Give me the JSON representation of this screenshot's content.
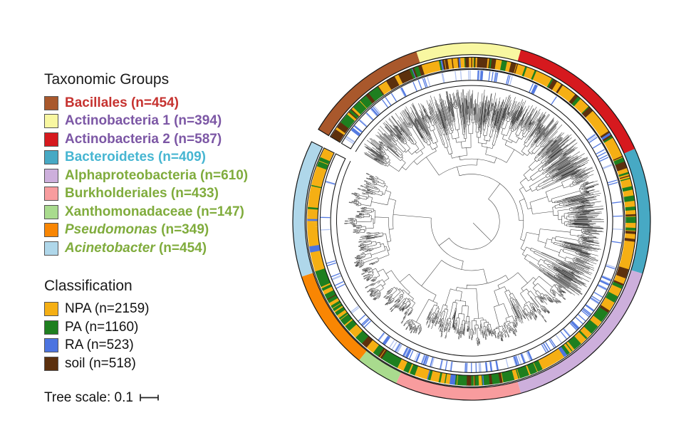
{
  "legend": {
    "taxonomic_header": "Taxonomic Groups",
    "classification_header": "Classification",
    "tree_scale_label": "Tree scale: 0.1"
  },
  "chart_data": {
    "type": "circular-phylogenetic-tree",
    "title": "",
    "tree_scale": 0.1,
    "gap_deg": [
      296.5,
      301
    ],
    "rings_order_outer_to_inner": [
      "taxonomic-group-ring",
      "classification-barcode-ring",
      "ra-barcode-ring",
      "phylogram"
    ],
    "groups": [
      {
        "name": "Bacillales",
        "n": 454,
        "color": "#A9582C",
        "label_color": "#C63330",
        "italic": false,
        "arc_start_deg": 301,
        "arc_end_deg": 342,
        "classification_mix": {
          "NPA": 0.3,
          "PA": 0.22,
          "RA": 0.05,
          "soil": 0.43
        },
        "ra_ring_density": 0.28
      },
      {
        "name": "Actinobacteria 1",
        "n": 394,
        "color": "#F8F7A1",
        "label_color": "#7C57A5",
        "italic": false,
        "arc_start_deg": 342,
        "arc_end_deg": 376,
        "classification_mix": {
          "NPA": 0.45,
          "PA": 0.15,
          "RA": 0.07,
          "soil": 0.33
        },
        "ra_ring_density": 0.22
      },
      {
        "name": "Actinobacteria 2",
        "n": 587,
        "color": "#D6191E",
        "label_color": "#7C57A5",
        "italic": false,
        "arc_start_deg": 376,
        "arc_end_deg": 426,
        "classification_mix": {
          "NPA": 0.72,
          "PA": 0.1,
          "RA": 0.04,
          "soil": 0.14
        },
        "ra_ring_density": 0.1
      },
      {
        "name": "Bacteroidetes",
        "n": 409,
        "color": "#47A9C4",
        "label_color": "#47B6D2",
        "italic": false,
        "arc_start_deg": 426,
        "arc_end_deg": 467,
        "classification_mix": {
          "NPA": 0.62,
          "PA": 0.2,
          "RA": 0.04,
          "soil": 0.14
        },
        "ra_ring_density": 0.1
      },
      {
        "name": "Alphaproteobacteria",
        "n": 610,
        "color": "#CDAFDC",
        "label_color": "#80AC3D",
        "italic": false,
        "arc_start_deg": 467,
        "arc_end_deg": 524,
        "classification_mix": {
          "NPA": 0.38,
          "PA": 0.52,
          "RA": 0.04,
          "soil": 0.06
        },
        "ra_ring_density": 0.28
      },
      {
        "name": "Burkholderiales",
        "n": 433,
        "color": "#F89C9E",
        "label_color": "#80AC3D",
        "italic": false,
        "arc_start_deg": 524,
        "arc_end_deg": 565,
        "classification_mix": {
          "NPA": 0.35,
          "PA": 0.58,
          "RA": 0.03,
          "soil": 0.04
        },
        "ra_ring_density": 0.25
      },
      {
        "name": "Xanthomonadaceae",
        "n": 147,
        "color": "#A9DB8E",
        "label_color": "#80AC3D",
        "italic": false,
        "arc_start_deg": 565,
        "arc_end_deg": 579,
        "classification_mix": {
          "NPA": 0.45,
          "PA": 0.5,
          "RA": 0.02,
          "soil": 0.03
        },
        "ra_ring_density": 0.35
      },
      {
        "name": "Pseudomonas",
        "n": 349,
        "color": "#F98603",
        "label_color": "#80AC3D",
        "italic": true,
        "arc_start_deg": 579,
        "arc_end_deg": 612,
        "classification_mix": {
          "NPA": 0.38,
          "PA": 0.55,
          "RA": 0.03,
          "soil": 0.04
        },
        "ra_ring_density": 0.12
      },
      {
        "name": "Acinetobacter",
        "n": 454,
        "color": "#AFD7EA",
        "label_color": "#80AC3D",
        "italic": true,
        "arc_start_deg": 612,
        "arc_end_deg": 656.5,
        "classification_mix": {
          "NPA": 0.93,
          "PA": 0.05,
          "RA": 0.01,
          "soil": 0.01
        },
        "ra_ring_density": 0.06
      }
    ],
    "classification": [
      {
        "name": "NPA",
        "n": 2159,
        "color": "#F5AF14"
      },
      {
        "name": "PA",
        "n": 1160,
        "color": "#1E7F1F"
      },
      {
        "name": "RA",
        "n": 523,
        "color": "#4C74E0"
      },
      {
        "name": "soil",
        "n": 518,
        "color": "#5C300D"
      }
    ]
  }
}
